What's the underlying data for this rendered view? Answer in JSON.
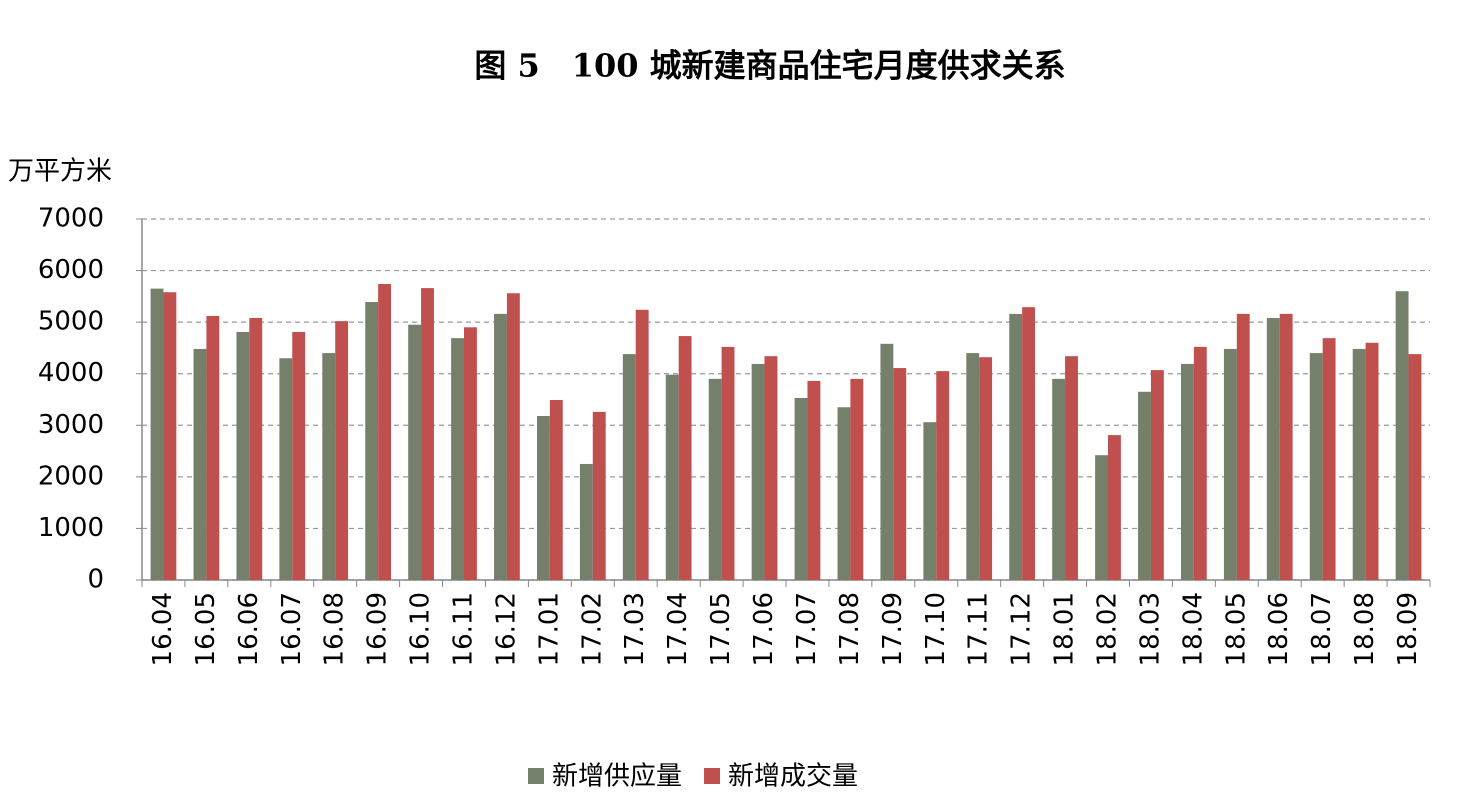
{
  "chart_data": {
    "type": "bar",
    "title": "图 5　100 城新建商品住宅月度供求关系",
    "y_label": "万平方米",
    "categories": [
      "16.04",
      "16.05",
      "16.06",
      "16.07",
      "16.08",
      "16.09",
      "16.10",
      "16.11",
      "16.12",
      "17.01",
      "17.02",
      "17.03",
      "17.04",
      "17.05",
      "17.06",
      "17.07",
      "17.08",
      "17.09",
      "17.10",
      "17.11",
      "17.12",
      "18.01",
      "18.02",
      "18.03",
      "18.04",
      "18.05",
      "18.06",
      "18.07",
      "18.08",
      "18.09"
    ],
    "series": [
      {
        "name": "新增供应量",
        "color": "#75806a",
        "values": [
          5650,
          4480,
          4810,
          4300,
          4400,
          5390,
          4950,
          4690,
          5160,
          3180,
          2250,
          4380,
          3980,
          3900,
          4190,
          3530,
          3350,
          4580,
          3060,
          4400,
          5160,
          3900,
          2420,
          3650,
          4190,
          4480,
          5080,
          4400,
          4480,
          5600
        ]
      },
      {
        "name": "新增成交量",
        "color": "#c0504d",
        "values": [
          5580,
          5120,
          5080,
          4810,
          5020,
          5740,
          5660,
          4900,
          5560,
          3490,
          3260,
          5240,
          4730,
          4520,
          4340,
          3860,
          3900,
          4110,
          4050,
          4320,
          5290,
          4340,
          2810,
          4070,
          4520,
          5160,
          5160,
          4690,
          4600,
          4380
        ]
      }
    ],
    "ylim": [
      0,
      7000
    ],
    "yticks": [
      0,
      1000,
      2000,
      3000,
      4000,
      5000,
      6000,
      7000
    ],
    "grid": true
  }
}
